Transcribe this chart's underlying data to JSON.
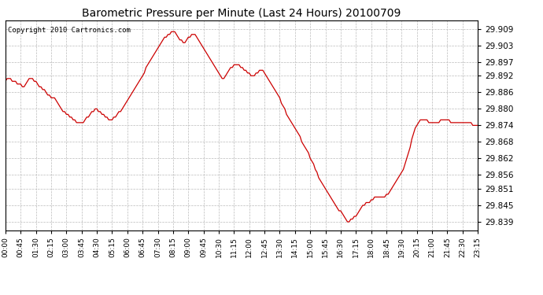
{
  "title": "Barometric Pressure per Minute (Last 24 Hours) 20100709",
  "copyright": "Copyright 2010 Cartronics.com",
  "line_color": "#cc0000",
  "bg_color": "#ffffff",
  "plot_bg_color": "#ffffff",
  "grid_color": "#bbbbbb",
  "yticks": [
    29.839,
    29.845,
    29.851,
    29.856,
    29.862,
    29.868,
    29.874,
    29.88,
    29.886,
    29.892,
    29.897,
    29.903,
    29.909
  ],
  "ylim": [
    29.836,
    29.912
  ],
  "xtick_labels": [
    "00:00",
    "00:45",
    "01:30",
    "02:15",
    "03:00",
    "03:45",
    "04:30",
    "05:15",
    "06:00",
    "06:45",
    "07:30",
    "08:15",
    "09:00",
    "09:45",
    "10:30",
    "11:15",
    "12:00",
    "12:45",
    "13:30",
    "14:15",
    "15:00",
    "15:45",
    "16:30",
    "17:15",
    "18:00",
    "18:45",
    "19:30",
    "20:15",
    "21:00",
    "21:45",
    "22:30",
    "23:15"
  ],
  "pressure_data": [
    29.89,
    29.891,
    29.891,
    29.891,
    29.89,
    29.89,
    29.89,
    29.889,
    29.889,
    29.889,
    29.888,
    29.888,
    29.889,
    29.89,
    29.891,
    29.891,
    29.891,
    29.89,
    29.89,
    29.889,
    29.888,
    29.888,
    29.887,
    29.887,
    29.886,
    29.885,
    29.885,
    29.884,
    29.884,
    29.884,
    29.883,
    29.882,
    29.881,
    29.88,
    29.879,
    29.879,
    29.878,
    29.878,
    29.877,
    29.877,
    29.876,
    29.876,
    29.875,
    29.875,
    29.875,
    29.875,
    29.875,
    29.876,
    29.877,
    29.877,
    29.878,
    29.879,
    29.879,
    29.88,
    29.88,
    29.879,
    29.879,
    29.878,
    29.878,
    29.877,
    29.877,
    29.876,
    29.876,
    29.876,
    29.877,
    29.877,
    29.878,
    29.879,
    29.879,
    29.88,
    29.881,
    29.882,
    29.883,
    29.884,
    29.885,
    29.886,
    29.887,
    29.888,
    29.889,
    29.89,
    29.891,
    29.892,
    29.893,
    29.895,
    29.896,
    29.897,
    29.898,
    29.899,
    29.9,
    29.901,
    29.902,
    29.903,
    29.904,
    29.905,
    29.906,
    29.906,
    29.907,
    29.907,
    29.908,
    29.908,
    29.908,
    29.907,
    29.906,
    29.905,
    29.905,
    29.904,
    29.904,
    29.905,
    29.906,
    29.906,
    29.907,
    29.907,
    29.907,
    29.906,
    29.905,
    29.904,
    29.903,
    29.902,
    29.901,
    29.9,
    29.899,
    29.898,
    29.897,
    29.896,
    29.895,
    29.894,
    29.893,
    29.892,
    29.891,
    29.891,
    29.892,
    29.893,
    29.894,
    29.895,
    29.895,
    29.896,
    29.896,
    29.896,
    29.896,
    29.895,
    29.895,
    29.894,
    29.894,
    29.893,
    29.893,
    29.892,
    29.892,
    29.892,
    29.893,
    29.893,
    29.894,
    29.894,
    29.894,
    29.893,
    29.892,
    29.891,
    29.89,
    29.889,
    29.888,
    29.887,
    29.886,
    29.885,
    29.884,
    29.882,
    29.881,
    29.88,
    29.878,
    29.877,
    29.876,
    29.875,
    29.874,
    29.873,
    29.872,
    29.871,
    29.87,
    29.868,
    29.867,
    29.866,
    29.865,
    29.864,
    29.862,
    29.861,
    29.86,
    29.858,
    29.857,
    29.855,
    29.854,
    29.853,
    29.852,
    29.851,
    29.85,
    29.849,
    29.848,
    29.847,
    29.846,
    29.845,
    29.844,
    29.843,
    29.843,
    29.842,
    29.841,
    29.84,
    29.839,
    29.839,
    29.84,
    29.84,
    29.841,
    29.841,
    29.842,
    29.843,
    29.844,
    29.845,
    29.845,
    29.846,
    29.846,
    29.846,
    29.847,
    29.847,
    29.848,
    29.848,
    29.848,
    29.848,
    29.848,
    29.848,
    29.848,
    29.849,
    29.849,
    29.85,
    29.851,
    29.852,
    29.853,
    29.854,
    29.855,
    29.856,
    29.857,
    29.858,
    29.86,
    29.862,
    29.864,
    29.866,
    29.869,
    29.871,
    29.873,
    29.874,
    29.875,
    29.876,
    29.876,
    29.876,
    29.876,
    29.876,
    29.875,
    29.875,
    29.875,
    29.875,
    29.875,
    29.875,
    29.875,
    29.876,
    29.876,
    29.876,
    29.876,
    29.876,
    29.876,
    29.875,
    29.875,
    29.875,
    29.875,
    29.875,
    29.875,
    29.875,
    29.875,
    29.875,
    29.875,
    29.875,
    29.875,
    29.875,
    29.874,
    29.874,
    29.874,
    29.874
  ]
}
